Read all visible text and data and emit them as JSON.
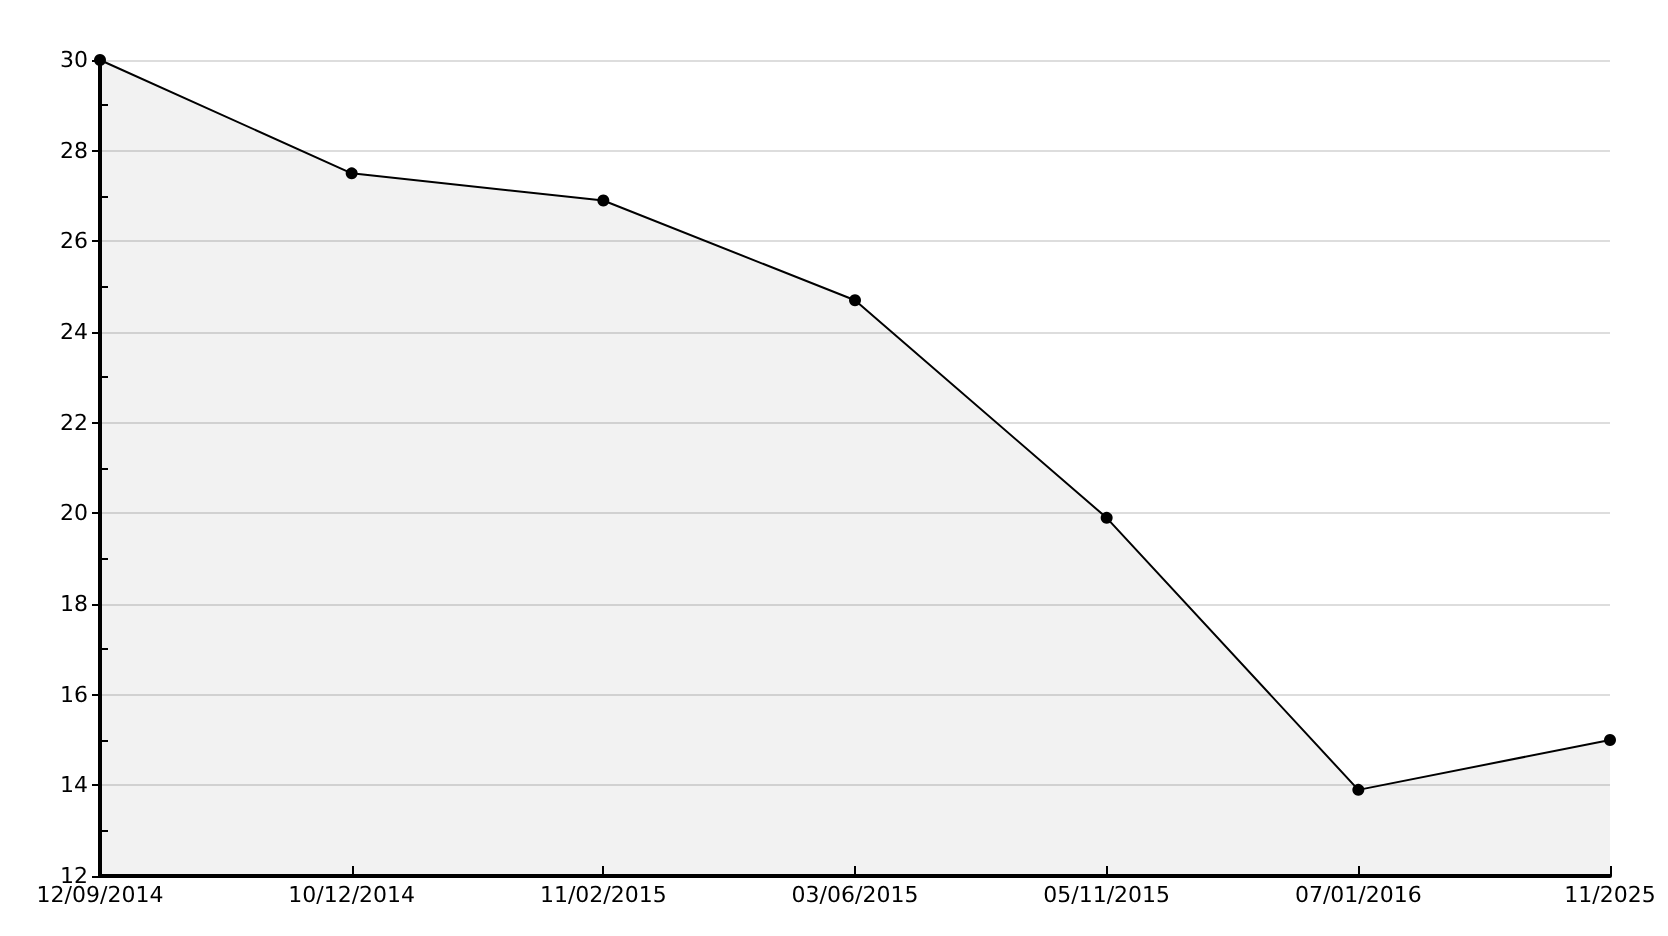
{
  "chart_data": {
    "type": "area",
    "categories": [
      "12/09/2014",
      "10/12/2014",
      "11/02/2015",
      "03/06/2015",
      "05/11/2015",
      "07/01/2016",
      "11/2025"
    ],
    "series": [
      {
        "color": "#000000",
        "values": [
          30,
          27.5,
          26.9,
          24.7,
          19.9,
          13.9,
          15.0
        ]
      }
    ],
    "ylim": [
      12,
      30
    ],
    "yticks": [
      12,
      {
        "value": 13,
        "label": null
      },
      14,
      {
        "value": 15,
        "label": null
      },
      16,
      {
        "value": 17,
        "label": null
      },
      18,
      {
        "value": 19,
        "label": null
      },
      20,
      {
        "value": 21,
        "label": null
      },
      22,
      {
        "value": 23,
        "label": null
      },
      24,
      {
        "value": 25,
        "label": null
      },
      26,
      {
        "value": 27,
        "label": null
      },
      28,
      {
        "value": 29,
        "label": null
      },
      30
    ],
    "grid": "y",
    "marker": "circle"
  }
}
